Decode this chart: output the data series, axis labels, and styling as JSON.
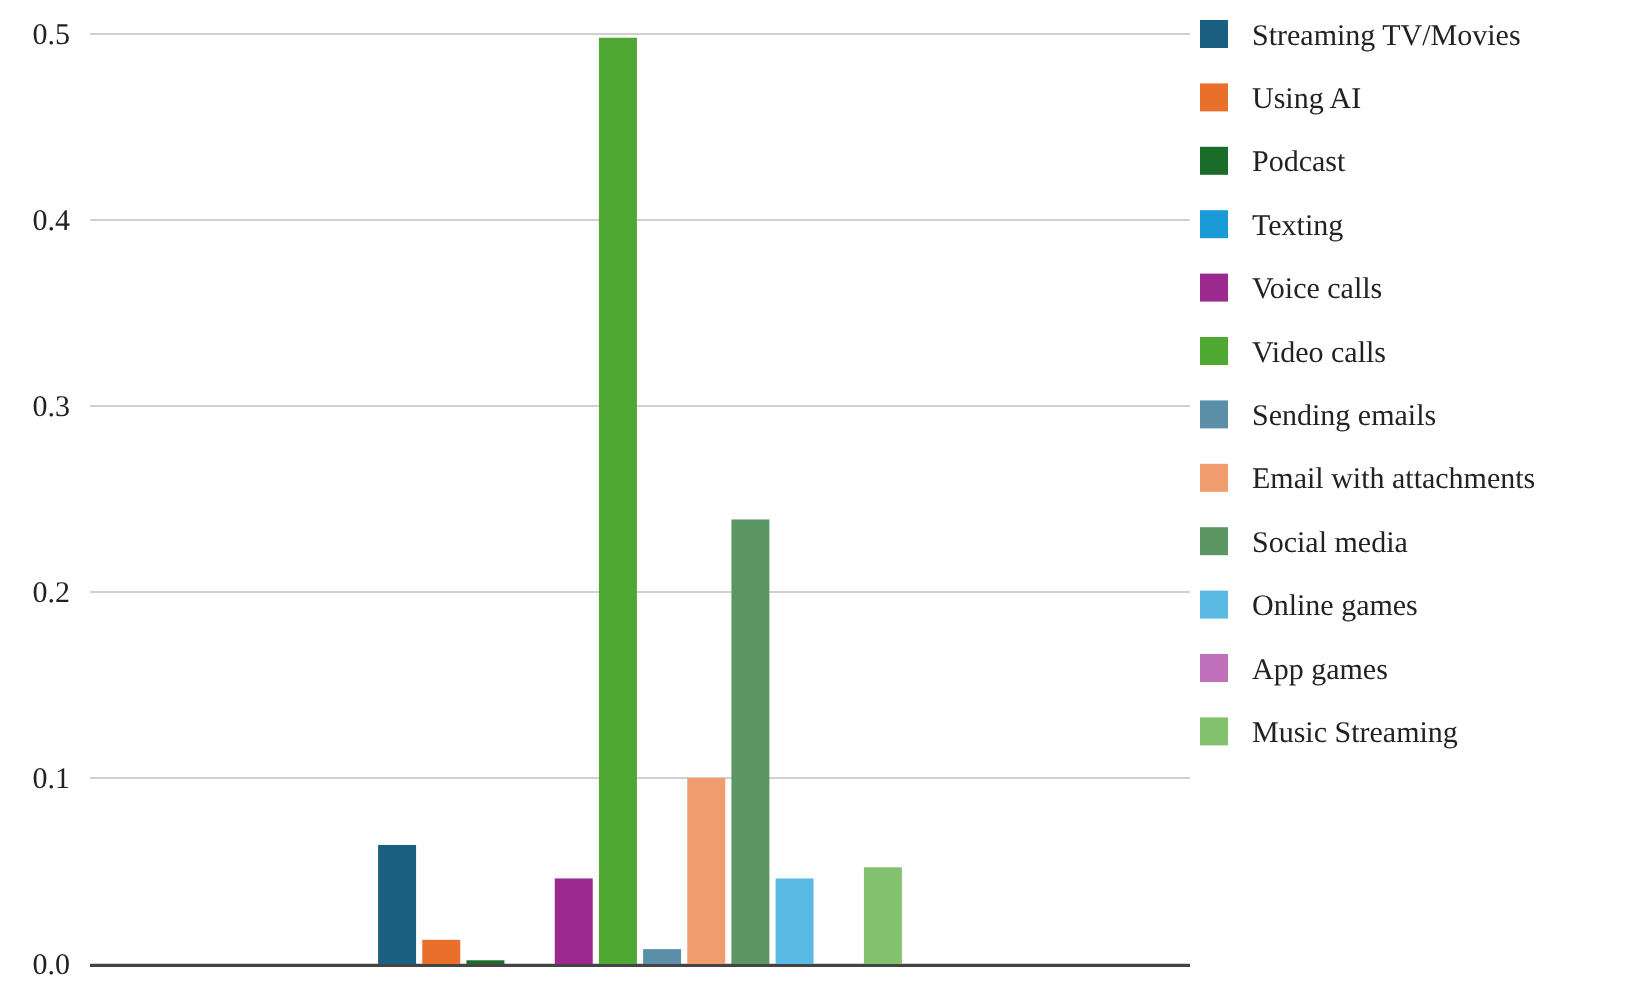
{
  "chart_data": {
    "type": "bar",
    "categories": [
      null
    ],
    "series": [
      {
        "name": "Streaming TV/Movies",
        "color": "#1a5e80",
        "values": [
          0.064
        ]
      },
      {
        "name": "Using AI",
        "color": "#e8702a",
        "values": [
          0.013
        ]
      },
      {
        "name": "Podcast",
        "color": "#1b6b2a",
        "values": [
          0.002
        ]
      },
      {
        "name": "Texting",
        "color": "#1a9bd7",
        "values": [
          0
        ]
      },
      {
        "name": "Voice calls",
        "color": "#9c2a8e",
        "values": [
          0.046
        ]
      },
      {
        "name": "Video calls",
        "color": "#4fa832",
        "values": [
          0.498
        ]
      },
      {
        "name": "Sending emails",
        "color": "#5b8fa8",
        "values": [
          0.008
        ]
      },
      {
        "name": "Email with attachments",
        "color": "#f09c6e",
        "values": [
          0.1
        ]
      },
      {
        "name": "Social media",
        "color": "#5c9664",
        "values": [
          0.239
        ]
      },
      {
        "name": "Online games",
        "color": "#5bbae3",
        "values": [
          0.046
        ]
      },
      {
        "name": "App games",
        "color": "#c06fba",
        "values": [
          0
        ]
      },
      {
        "name": "Music Streaming",
        "color": "#82c26e",
        "values": [
          0.052
        ]
      }
    ],
    "ylim": [
      0,
      0.5
    ],
    "yticks": [
      {
        "value": 0,
        "label": "0.0"
      },
      0.1,
      0.2,
      0.3,
      0.4,
      0.5
    ],
    "grid": "y",
    "legend": "right"
  }
}
